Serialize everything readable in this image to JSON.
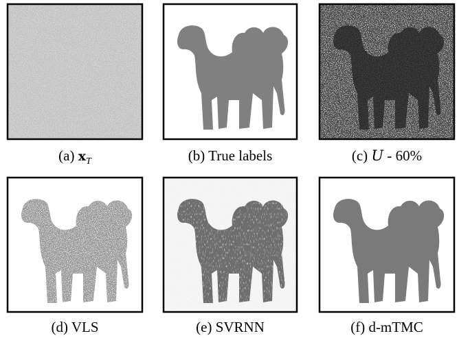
{
  "captions": [
    {
      "tag": "(a)",
      "symbol": "x",
      "subscript": "T"
    },
    {
      "tag": "(b)",
      "text": "True labels"
    },
    {
      "tag": "(c)",
      "symbol": "U",
      "text": "- 60%"
    },
    {
      "tag": "(d)",
      "text": "VLS"
    },
    {
      "tag": "(e)",
      "text": "SVRNN"
    },
    {
      "tag": "(f)",
      "text": "d-mTMC"
    }
  ]
}
